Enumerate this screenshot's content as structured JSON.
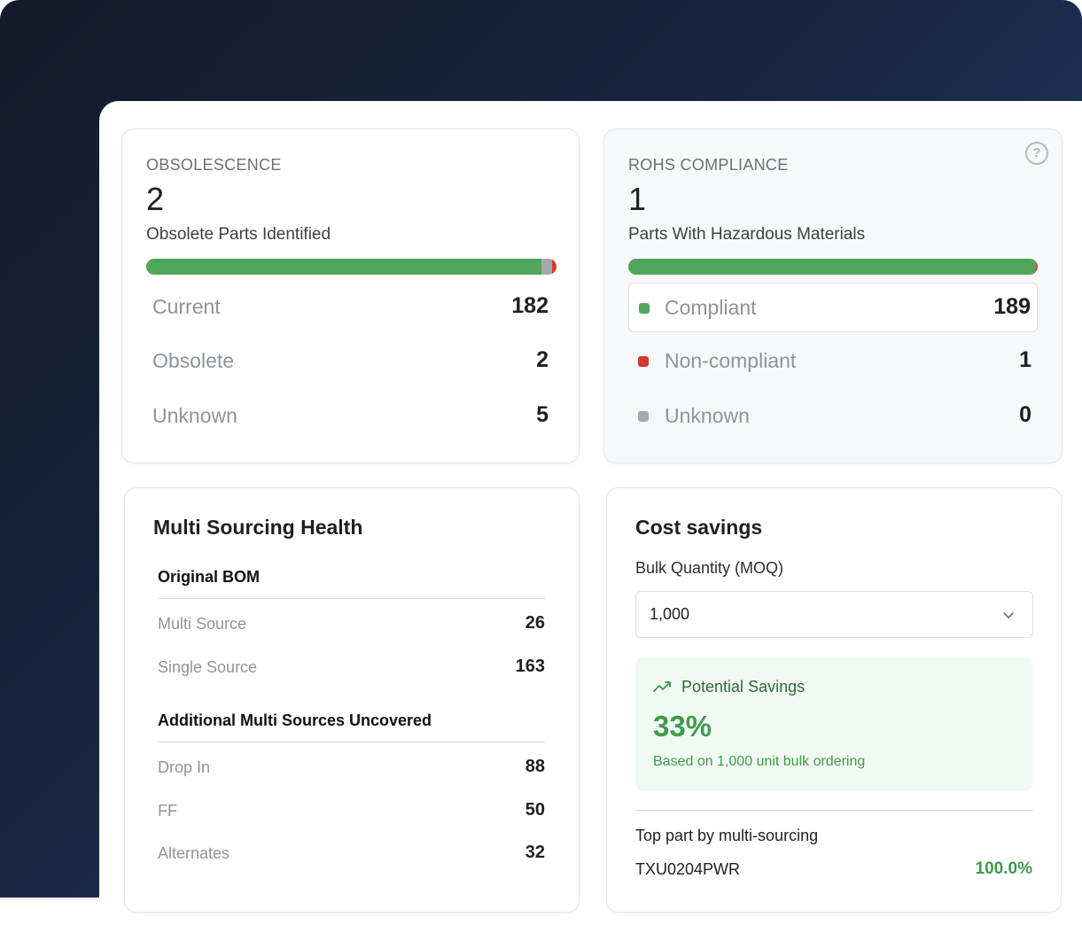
{
  "colors": {
    "green": "#4fa65a",
    "red": "#d23c2e",
    "grey": "#a5a8ae",
    "accent_green": "#3f9a4b"
  },
  "obsolescence": {
    "eyebrow": "OBSOLESCENCE",
    "count": "2",
    "subtitle": "Obsolete Parts Identified",
    "bar": {
      "current": 182,
      "unknown": 5,
      "obsolete": 2
    },
    "rows": [
      {
        "label": "Current",
        "value": "182"
      },
      {
        "label": "Obsolete",
        "value": "2"
      },
      {
        "label": "Unknown",
        "value": "5"
      }
    ]
  },
  "rohs": {
    "eyebrow": "ROHS COMPLIANCE",
    "count": "1",
    "subtitle": "Parts With Hazardous Materials",
    "help_icon": "question-circle-icon",
    "bar": {
      "compliant": 189,
      "non_compliant": 1,
      "unknown": 0
    },
    "rows": [
      {
        "label": "Compliant",
        "value": "189",
        "color": "#4fa65a"
      },
      {
        "label": "Non-compliant",
        "value": "1",
        "color": "#d23c2e"
      },
      {
        "label": "Unknown",
        "value": "0",
        "color": "#a5a8ae"
      }
    ]
  },
  "multi_sourcing": {
    "title": "Multi Sourcing Health",
    "original_bom": {
      "heading": "Original BOM",
      "rows": [
        {
          "label": "Multi Source",
          "value": "26"
        },
        {
          "label": "Single Source",
          "value": "163"
        }
      ]
    },
    "additional": {
      "heading": "Additional Multi Sources Uncovered",
      "rows": [
        {
          "label": "Drop In",
          "value": "88"
        },
        {
          "label": "FF",
          "value": "50"
        },
        {
          "label": "Alternates",
          "value": "32"
        }
      ]
    }
  },
  "cost_savings": {
    "title": "Cost savings",
    "moq_label": "Bulk Quantity (MOQ)",
    "moq_value": "1,000",
    "savings_label": "Potential Savings",
    "savings_percent": "33%",
    "savings_note": "Based on 1,000 unit bulk ordering",
    "top_part_label": "Top part by multi-sourcing",
    "top_part_name": "TXU0204PWR",
    "top_part_percent": "100.0%"
  }
}
